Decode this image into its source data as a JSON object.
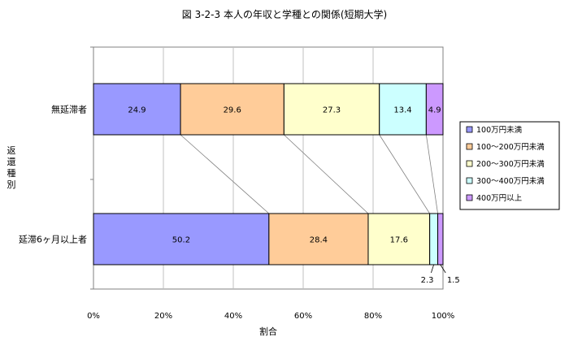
{
  "chart_data": {
    "type": "bar",
    "orientation": "horizontal",
    "stacked": "percent",
    "title": "図 3-2-3  本人の年収と学種との関係(短期大学)",
    "xlabel": "割合",
    "ylabel": "返還種別",
    "categories": [
      "無延滞者",
      "延滞6ヶ月以上者"
    ],
    "series": [
      {
        "name": "100万円未満",
        "color": "#9999ff",
        "values": [
          24.9,
          50.2
        ]
      },
      {
        "name": "100〜200万円未満",
        "color": "#ffcc99",
        "values": [
          29.6,
          28.4
        ]
      },
      {
        "name": "200〜300万円未満",
        "color": "#ffffcc",
        "values": [
          27.3,
          17.6
        ]
      },
      {
        "name": "300〜400万円未満",
        "color": "#ccffff",
        "values": [
          13.4,
          2.3
        ]
      },
      {
        "name": "400万円以上",
        "color": "#cc99ff",
        "values": [
          4.9,
          1.5
        ]
      }
    ],
    "xlim": [
      0,
      100
    ],
    "xticks": [
      "0%",
      "20%",
      "40%",
      "60%",
      "80%",
      "100%"
    ],
    "grid": true,
    "legend": "right",
    "series_lines": true
  }
}
